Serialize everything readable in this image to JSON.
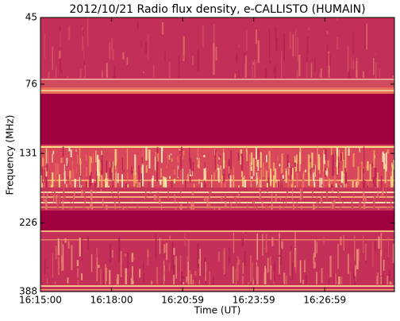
{
  "chart_data": {
    "type": "spectrogram",
    "title": "2012/10/21  Radio flux density, e-CALLISTO (HUMAIN)",
    "xlabel": "Time (UT)",
    "ylabel": "Frequency (MHz)",
    "xticks": [
      "16:15:00",
      "16:18:00",
      "16:20:59",
      "16:23:59",
      "16:26:59"
    ],
    "ylim": [
      45,
      388
    ],
    "yticks": [
      45,
      76,
      131,
      226,
      388
    ],
    "y_log": true,
    "y_inverted": true
  }
}
